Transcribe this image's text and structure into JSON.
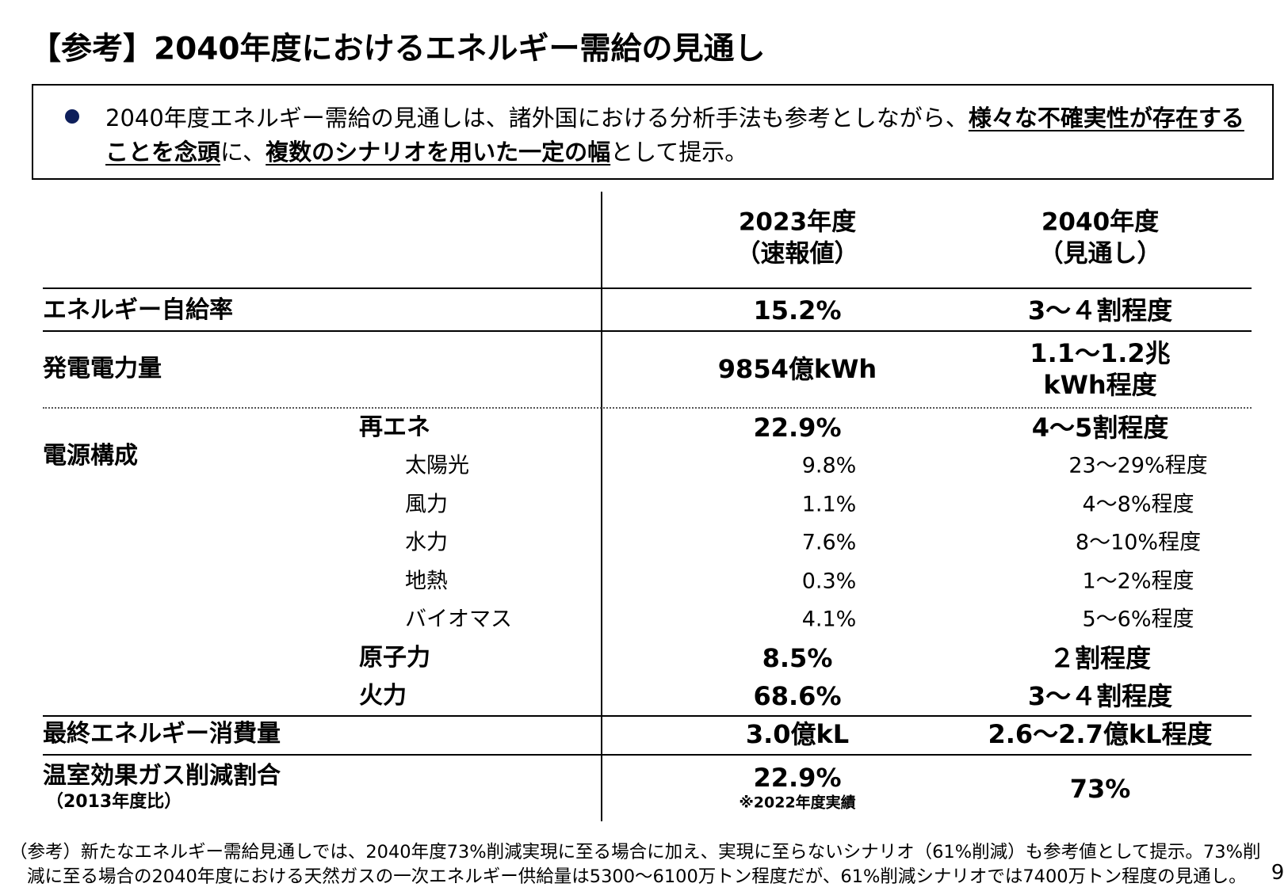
{
  "title": "【参考】2040年度におけるエネルギー需給の見通し",
  "summary": {
    "segments": [
      {
        "text": "2040年度エネルギー需給の見通しは、諸外国における分析手法も参考としながら、",
        "emphasis": false
      },
      {
        "text": "様々な不確実性が存在することを念頭",
        "emphasis": true
      },
      {
        "text": "に、",
        "emphasis": false
      },
      {
        "text": "複数のシナリオを用いた一定の幅",
        "emphasis": true
      },
      {
        "text": "として提示。",
        "emphasis": false
      }
    ]
  },
  "table": {
    "header": [
      [
        "2023年度",
        "（速報値）"
      ],
      [
        "2040年度",
        "（見通し）"
      ]
    ],
    "rows": [
      {
        "label": "エネルギー自給率",
        "fy2023": "15.2%",
        "fy2040": "3～４割程度"
      },
      {
        "label": "発電電力量",
        "fy2023": "9854億kWh",
        "fy2040": [
          "1.1～1.2兆",
          "kWh程度"
        ]
      }
    ],
    "mix": {
      "label": "電源構成",
      "items": [
        {
          "name": "再エネ",
          "level": 1,
          "fy2023": "22.9%",
          "fy2040": "4～5割程度"
        },
        {
          "name": "太陽光",
          "level": 2,
          "fy2023": "9.8%",
          "fy2040": "23～29%程度"
        },
        {
          "name": "風力",
          "level": 2,
          "fy2023": "1.1%",
          "fy2040": "4～8%程度"
        },
        {
          "name": "水力",
          "level": 2,
          "fy2023": "7.6%",
          "fy2040": "8～10%程度"
        },
        {
          "name": "地熱",
          "level": 2,
          "fy2023": "0.3%",
          "fy2040": "1～2%程度"
        },
        {
          "name": "バイオマス",
          "level": 2,
          "fy2023": "4.1%",
          "fy2040": "5～6%程度"
        },
        {
          "name": "原子力",
          "level": 1,
          "fy2023": "8.5%",
          "fy2040": "２割程度"
        },
        {
          "name": "火力",
          "level": 1,
          "fy2023": "68.6%",
          "fy2040": "3～４割程度"
        }
      ]
    },
    "tail": [
      {
        "label": "最終エネルギー消費量",
        "fy2023": "3.0億kL",
        "fy2040": "2.6～2.7億kL程度"
      },
      {
        "label": "温室効果ガス削減割合",
        "sublabel": "（2013年度比）",
        "fy2023": "22.9%",
        "note": "※2022年度実績",
        "fy2040": "73%"
      }
    ]
  },
  "footnote": [
    "（参考）新たなエネルギー需給見通しでは、2040年度73%削減実現に至る場合に加え、実現に至らないシナリオ（61%削減）も参考値として提示。73%削",
    "減に至る場合の2040年度における天然ガスの一次エネルギー供給量は5300～6100万トン程度だが、61%削減シナリオでは7400万トン程度の見通し。"
  ],
  "page_number": "9"
}
